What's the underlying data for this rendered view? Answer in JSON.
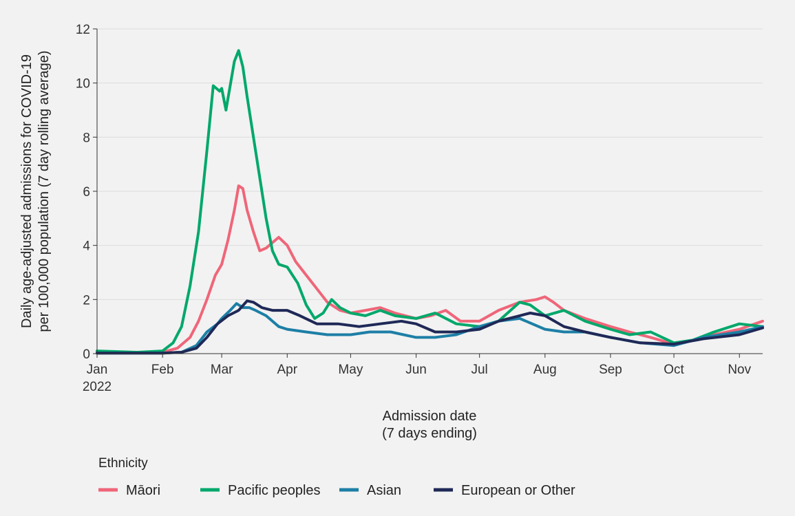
{
  "chart_data": {
    "type": "line",
    "xlabel_line1": "Admission date",
    "xlabel_line2": "(7 days ending)",
    "ylabel_line1": "Daily age-adjusted admissions for COVID-19",
    "ylabel_line2": "per 100,000 population (7 day rolling average)",
    "ylim": [
      0,
      12
    ],
    "xlim": [
      "2022-01-01",
      "2022-11-12"
    ],
    "y_ticks": [
      "0",
      "2",
      "4",
      "6",
      "8",
      "10",
      "12"
    ],
    "x_ticks": [
      {
        "label": "Jan",
        "date": "2022-01-01",
        "sub": "2022"
      },
      {
        "label": "Feb",
        "date": "2022-02-01"
      },
      {
        "label": "Mar",
        "date": "2022-03-01"
      },
      {
        "label": "Apr",
        "date": "2022-04-01"
      },
      {
        "label": "May",
        "date": "2022-05-01"
      },
      {
        "label": "Jun",
        "date": "2022-06-01"
      },
      {
        "label": "Jul",
        "date": "2022-07-01"
      },
      {
        "label": "Aug",
        "date": "2022-08-01"
      },
      {
        "label": "Sep",
        "date": "2022-09-01"
      },
      {
        "label": "Oct",
        "date": "2022-10-01"
      },
      {
        "label": "Nov",
        "date": "2022-11-01"
      }
    ],
    "grid": "horizontal",
    "legend_title": "Ethnicity",
    "legend_position": "bottom",
    "series": [
      {
        "name": "Māori",
        "color": "#ef6679",
        "x": [
          "2022-01-01",
          "2022-01-15",
          "2022-02-01",
          "2022-02-08",
          "2022-02-14",
          "2022-02-18",
          "2022-02-22",
          "2022-02-26",
          "2022-03-01",
          "2022-03-04",
          "2022-03-07",
          "2022-03-09",
          "2022-03-11",
          "2022-03-13",
          "2022-03-16",
          "2022-03-19",
          "2022-03-22",
          "2022-03-25",
          "2022-03-28",
          "2022-04-01",
          "2022-04-05",
          "2022-04-09",
          "2022-04-14",
          "2022-04-20",
          "2022-04-26",
          "2022-05-01",
          "2022-05-08",
          "2022-05-15",
          "2022-05-22",
          "2022-06-01",
          "2022-06-08",
          "2022-06-15",
          "2022-06-22",
          "2022-07-01",
          "2022-07-10",
          "2022-07-20",
          "2022-07-28",
          "2022-08-01",
          "2022-08-05",
          "2022-08-10",
          "2022-08-20",
          "2022-09-01",
          "2022-09-10",
          "2022-09-20",
          "2022-10-01",
          "2022-10-10",
          "2022-10-20",
          "2022-11-01",
          "2022-11-12"
        ],
        "y": [
          0.05,
          0.05,
          0.05,
          0.2,
          0.6,
          1.2,
          2.0,
          2.9,
          3.3,
          4.2,
          5.3,
          6.2,
          6.1,
          5.3,
          4.5,
          3.8,
          3.9,
          4.1,
          4.3,
          4.0,
          3.4,
          3.0,
          2.5,
          1.9,
          1.6,
          1.5,
          1.6,
          1.7,
          1.5,
          1.3,
          1.4,
          1.6,
          1.2,
          1.2,
          1.6,
          1.9,
          2.0,
          2.1,
          1.9,
          1.6,
          1.3,
          1.0,
          0.8,
          0.6,
          0.35,
          0.5,
          0.7,
          0.9,
          1.2
        ]
      },
      {
        "name": "Pacific peoples",
        "color": "#00a86b",
        "x": [
          "2022-01-01",
          "2022-01-20",
          "2022-02-01",
          "2022-02-06",
          "2022-02-10",
          "2022-02-14",
          "2022-02-18",
          "2022-02-22",
          "2022-02-25",
          "2022-02-28",
          "2022-03-01",
          "2022-03-03",
          "2022-03-05",
          "2022-03-07",
          "2022-03-09",
          "2022-03-11",
          "2022-03-13",
          "2022-03-16",
          "2022-03-19",
          "2022-03-22",
          "2022-03-25",
          "2022-03-28",
          "2022-04-01",
          "2022-04-06",
          "2022-04-10",
          "2022-04-14",
          "2022-04-18",
          "2022-04-22",
          "2022-04-26",
          "2022-05-01",
          "2022-05-08",
          "2022-05-15",
          "2022-05-22",
          "2022-06-01",
          "2022-06-10",
          "2022-06-20",
          "2022-07-01",
          "2022-07-10",
          "2022-07-20",
          "2022-07-25",
          "2022-08-01",
          "2022-08-10",
          "2022-08-20",
          "2022-09-01",
          "2022-09-10",
          "2022-09-20",
          "2022-10-01",
          "2022-10-10",
          "2022-10-20",
          "2022-11-01",
          "2022-11-12"
        ],
        "y": [
          0.1,
          0.05,
          0.1,
          0.4,
          1.0,
          2.5,
          4.5,
          7.5,
          9.9,
          9.7,
          9.8,
          9.0,
          9.9,
          10.8,
          11.2,
          10.6,
          9.5,
          8.0,
          6.5,
          5.0,
          3.8,
          3.3,
          3.2,
          2.6,
          1.8,
          1.3,
          1.5,
          2.0,
          1.7,
          1.5,
          1.4,
          1.6,
          1.4,
          1.3,
          1.5,
          1.1,
          1.0,
          1.2,
          1.9,
          1.8,
          1.4,
          1.6,
          1.2,
          0.9,
          0.7,
          0.8,
          0.4,
          0.5,
          0.8,
          1.1,
          1.0
        ]
      },
      {
        "name": "Asian",
        "color": "#1d7fa6",
        "x": [
          "2022-01-01",
          "2022-02-01",
          "2022-02-10",
          "2022-02-17",
          "2022-02-22",
          "2022-02-27",
          "2022-03-01",
          "2022-03-05",
          "2022-03-08",
          "2022-03-11",
          "2022-03-14",
          "2022-03-17",
          "2022-03-22",
          "2022-03-28",
          "2022-04-01",
          "2022-04-10",
          "2022-04-20",
          "2022-05-01",
          "2022-05-10",
          "2022-05-20",
          "2022-06-01",
          "2022-06-10",
          "2022-06-20",
          "2022-07-01",
          "2022-07-10",
          "2022-07-20",
          "2022-08-01",
          "2022-08-10",
          "2022-08-20",
          "2022-09-01",
          "2022-09-15",
          "2022-10-01",
          "2022-10-15",
          "2022-11-01",
          "2022-11-12"
        ],
        "y": [
          0.02,
          0.02,
          0.05,
          0.3,
          0.8,
          1.1,
          1.3,
          1.6,
          1.85,
          1.7,
          1.7,
          1.6,
          1.4,
          1.0,
          0.9,
          0.8,
          0.7,
          0.7,
          0.8,
          0.8,
          0.6,
          0.6,
          0.7,
          1.0,
          1.2,
          1.3,
          0.9,
          0.8,
          0.8,
          0.6,
          0.4,
          0.3,
          0.6,
          0.8,
          1.0
        ]
      },
      {
        "name": "European or Other",
        "color": "#1f2957",
        "x": [
          "2022-01-01",
          "2022-02-01",
          "2022-02-10",
          "2022-02-17",
          "2022-02-22",
          "2022-02-27",
          "2022-03-04",
          "2022-03-09",
          "2022-03-13",
          "2022-03-16",
          "2022-03-20",
          "2022-03-25",
          "2022-04-01",
          "2022-04-07",
          "2022-04-15",
          "2022-04-25",
          "2022-05-05",
          "2022-05-15",
          "2022-05-25",
          "2022-06-01",
          "2022-06-10",
          "2022-06-20",
          "2022-07-01",
          "2022-07-10",
          "2022-07-20",
          "2022-07-25",
          "2022-08-01",
          "2022-08-10",
          "2022-08-20",
          "2022-09-01",
          "2022-09-15",
          "2022-10-01",
          "2022-10-15",
          "2022-11-01",
          "2022-11-12"
        ],
        "y": [
          0.02,
          0.02,
          0.05,
          0.2,
          0.6,
          1.1,
          1.4,
          1.6,
          1.95,
          1.9,
          1.7,
          1.6,
          1.6,
          1.4,
          1.1,
          1.1,
          1.0,
          1.1,
          1.2,
          1.1,
          0.8,
          0.8,
          0.9,
          1.2,
          1.4,
          1.5,
          1.4,
          1.0,
          0.8,
          0.6,
          0.4,
          0.35,
          0.55,
          0.7,
          0.95
        ]
      }
    ]
  }
}
